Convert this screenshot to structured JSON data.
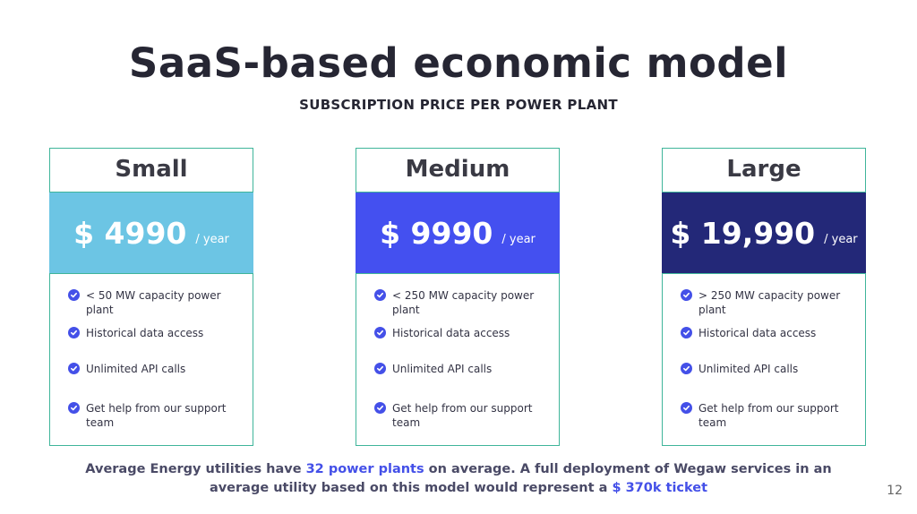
{
  "slide": {
    "title": "SaaS-based economic model",
    "subtitle": "SUBSCRIPTION PRICE PER POWER PLANT",
    "page_number": "12"
  },
  "plans": [
    {
      "name": "Small",
      "price": "$ 4990",
      "period": "/ year",
      "color": "#6cc5e4",
      "features": [
        "< 50 MW capacity power plant",
        "Historical data access",
        "Unlimited API calls",
        "Get help from our support team"
      ]
    },
    {
      "name": "Medium",
      "price": "$ 9990",
      "period": "/ year",
      "color": "#4450f0",
      "features": [
        "< 250 MW capacity power plant",
        "Historical data access",
        "Unlimited API calls",
        "Get help from our support team"
      ]
    },
    {
      "name": "Large",
      "price": "$ 19,990",
      "period": "/ year",
      "color": "#232878",
      "features": [
        "> 250 MW capacity power plant",
        "Historical data access",
        "Unlimited API calls",
        "Get help from our support team"
      ]
    }
  ],
  "footer": {
    "part1": "Average Energy utilities have ",
    "highlight1": "32 power plants",
    "part2": " on average. A full deployment of Wegaw services in an average utility based on this model would represent a ",
    "highlight2": "$ 370k ticket"
  },
  "colors": {
    "accent": "#4450e8",
    "border": "#3fb59a"
  },
  "icons": {
    "feature_check": "check-circle-icon"
  }
}
